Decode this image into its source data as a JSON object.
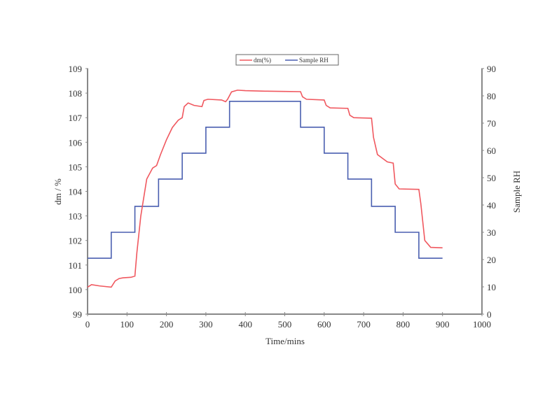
{
  "chart_data": {
    "type": "line",
    "title": "",
    "xlabel": "Time/mins",
    "ylabel": "dm / %",
    "y2label": "Sample RH",
    "xlim": [
      0,
      1000
    ],
    "ylim": [
      99,
      109
    ],
    "y2lim": [
      0,
      90
    ],
    "xticks": [
      0,
      100,
      200,
      300,
      400,
      500,
      600,
      700,
      800,
      900,
      1000
    ],
    "yticks": [
      99,
      100,
      101,
      102,
      103,
      104,
      105,
      106,
      107,
      108,
      109
    ],
    "y2ticks": [
      0,
      10,
      20,
      30,
      40,
      50,
      60,
      70,
      80,
      90
    ],
    "grid": false,
    "legend_position": "top-center",
    "series": [
      {
        "name": "dm(%)",
        "axis": "left",
        "color": "#f0585f",
        "x": [
          0,
          10,
          30,
          60,
          70,
          80,
          90,
          110,
          120,
          125,
          135,
          150,
          165,
          175,
          185,
          200,
          215,
          230,
          240,
          245,
          255,
          270,
          290,
          295,
          305,
          340,
          350,
          355,
          365,
          380,
          400,
          450,
          500,
          540,
          545,
          555,
          600,
          605,
          615,
          660,
          665,
          675,
          720,
          725,
          735,
          760,
          775,
          780,
          790,
          840,
          845,
          855,
          870,
          900
        ],
        "values": [
          100.1,
          100.2,
          100.15,
          100.1,
          100.35,
          100.45,
          100.48,
          100.5,
          100.55,
          101.5,
          103.0,
          104.5,
          104.95,
          105.05,
          105.5,
          106.1,
          106.6,
          106.9,
          107.0,
          107.45,
          107.6,
          107.5,
          107.45,
          107.7,
          107.75,
          107.72,
          107.65,
          107.75,
          108.05,
          108.12,
          108.1,
          108.08,
          108.07,
          108.06,
          107.85,
          107.75,
          107.72,
          107.5,
          107.4,
          107.38,
          107.1,
          107.0,
          106.98,
          106.2,
          105.5,
          105.2,
          105.15,
          104.3,
          104.1,
          104.08,
          103.5,
          102.0,
          101.72,
          101.7
        ]
      },
      {
        "name": "Sample RH",
        "axis": "right",
        "color": "#4a5fb0",
        "x": [
          0,
          60,
          60,
          120,
          120,
          180,
          180,
          240,
          240,
          300,
          300,
          360,
          360,
          540,
          540,
          600,
          600,
          660,
          660,
          720,
          720,
          780,
          780,
          840,
          840,
          900
        ],
        "values": [
          20.5,
          20.5,
          30,
          30,
          39.5,
          39.5,
          49.5,
          49.5,
          59,
          59,
          68.5,
          68.5,
          78,
          78,
          68.5,
          68.5,
          59,
          59,
          49.5,
          49.5,
          39.5,
          39.5,
          30,
          30,
          20.5,
          20.5
        ]
      }
    ]
  },
  "legend": {
    "items": [
      {
        "label": "dm(%)",
        "color": "#f0585f"
      },
      {
        "label": "Sample RH",
        "color": "#4a5fb0"
      }
    ]
  },
  "axes": {
    "x_title": "Time/mins",
    "y_title": "dm / %",
    "y2_title": "Sample RH",
    "x_tick_labels": [
      "0",
      "100",
      "200",
      "300",
      "400",
      "500",
      "600",
      "700",
      "800",
      "900",
      "1000"
    ],
    "y_tick_labels": [
      "99",
      "100",
      "101",
      "102",
      "103",
      "104",
      "105",
      "106",
      "107",
      "108",
      "109"
    ],
    "y2_tick_labels": [
      "0",
      "10",
      "20",
      "30",
      "40",
      "50",
      "60",
      "70",
      "80",
      "90"
    ]
  }
}
